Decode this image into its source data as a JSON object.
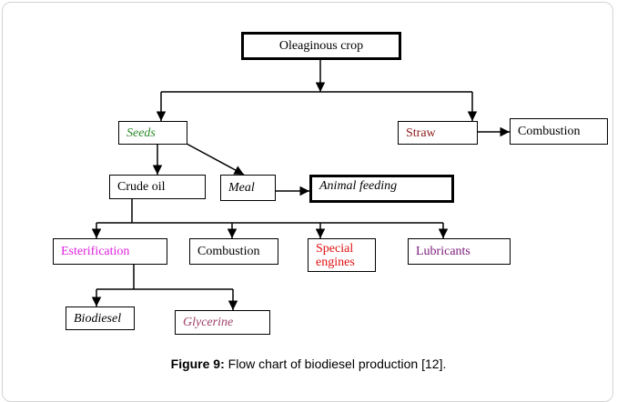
{
  "nodes": [
    {
      "label": "Oleaginous crop"
    },
    {
      "label": "Seeds"
    },
    {
      "label": "Straw"
    },
    {
      "label": "Combustion"
    },
    {
      "label": "Crude oil"
    },
    {
      "label": "Meal"
    },
    {
      "label": "Animal feeding"
    },
    {
      "label": "Esterification"
    },
    {
      "label": "Combustion"
    },
    {
      "label": "Special engines"
    },
    {
      "label": "Lubricants"
    },
    {
      "label": "Biodiesel"
    },
    {
      "label": "Glycerine"
    }
  ],
  "caption": {
    "label": "Figure 9:",
    "text": " Flow chart of biodiesel production [12]."
  }
}
